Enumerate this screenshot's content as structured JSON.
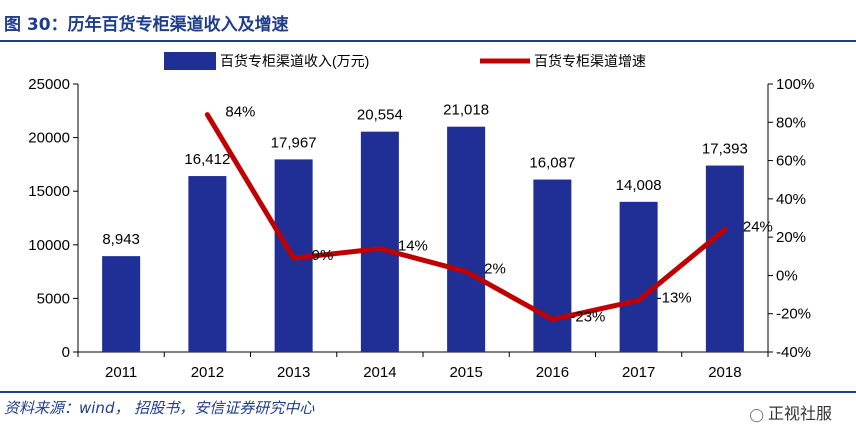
{
  "header": {
    "title": "图 30：历年百货专柜渠道收入及增速"
  },
  "footer": {
    "source": "资料来源：wind， 招股书，安信证券研究中心",
    "watermark": "正视社服"
  },
  "colors": {
    "bar": "#1f2f96",
    "line": "#c00000",
    "text": "#000000",
    "title": "#1f3d8c"
  },
  "chart_data": {
    "type": "bar",
    "categories": [
      "2011",
      "2012",
      "2013",
      "2014",
      "2015",
      "2016",
      "2017",
      "2018"
    ],
    "series": [
      {
        "name": "百货专柜渠道收入(万元)",
        "type": "bar",
        "axis": "left",
        "values": [
          8943,
          16412,
          17967,
          20554,
          21018,
          16087,
          14008,
          17393
        ],
        "labels": [
          "8,943",
          "16,412",
          "17,967",
          "20,554",
          "21,018",
          "16,087",
          "14,008",
          "17,393"
        ]
      },
      {
        "name": "百货专柜渠道增速",
        "type": "line",
        "axis": "right",
        "values": [
          null,
          84,
          9,
          14,
          2,
          -23,
          -13,
          24
        ],
        "labels": [
          "",
          "84%",
          "9%",
          "14%",
          "2%",
          "-23%",
          "-13%",
          "24%"
        ]
      }
    ],
    "y_left": {
      "ylim": [
        0,
        25000
      ],
      "ticks": [
        "0",
        "5000",
        "10000",
        "15000",
        "20000",
        "25000"
      ]
    },
    "y_right": {
      "ylim": [
        -40,
        100
      ],
      "ticks": [
        "-40%",
        "-20%",
        "0%",
        "20%",
        "40%",
        "60%",
        "80%",
        "100%"
      ]
    },
    "legend": "top",
    "grid": false
  }
}
